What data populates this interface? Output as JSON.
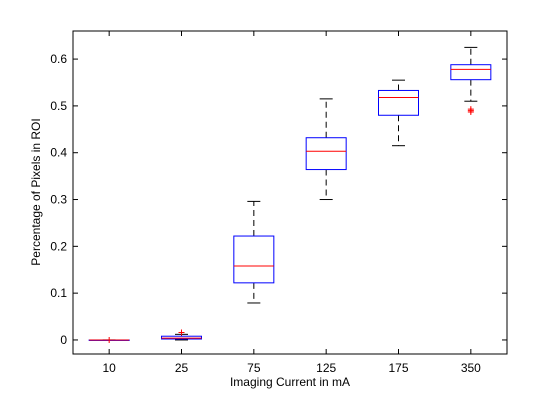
{
  "chart_data": {
    "type": "box",
    "xlabel": "Imaging Current in mA",
    "ylabel": "Percentage of Pixels in ROI",
    "categories": [
      "10",
      "25",
      "75",
      "125",
      "175",
      "350"
    ],
    "ylim": [
      -0.03,
      0.66
    ],
    "yticks": [
      0,
      0.1,
      0.2,
      0.3,
      0.4,
      0.5,
      0.6
    ],
    "ytick_labels": [
      "0",
      "0.1",
      "0.2",
      "0.3",
      "0.4",
      "0.5",
      "0.6"
    ],
    "grid": false,
    "boxes": [
      {
        "whisker_low": 0.0,
        "q1": 0.0,
        "median": 0.0,
        "q3": 0.0,
        "whisker_high": 0.0,
        "outliers": [
          0.0
        ]
      },
      {
        "whisker_low": 0.0,
        "q1": 0.002,
        "median": 0.004,
        "q3": 0.008,
        "whisker_high": 0.012,
        "outliers": [
          0.016
        ]
      },
      {
        "whisker_low": 0.079,
        "q1": 0.122,
        "median": 0.158,
        "q3": 0.222,
        "whisker_high": 0.296,
        "outliers": []
      },
      {
        "whisker_low": 0.3,
        "q1": 0.364,
        "median": 0.403,
        "q3": 0.432,
        "whisker_high": 0.515,
        "outliers": []
      },
      {
        "whisker_low": 0.415,
        "q1": 0.48,
        "median": 0.518,
        "q3": 0.533,
        "whisker_high": 0.555,
        "outliers": []
      },
      {
        "whisker_low": 0.51,
        "q1": 0.556,
        "median": 0.578,
        "q3": 0.588,
        "whisker_high": 0.625,
        "outliers": [
          0.493,
          0.49,
          0.487
        ]
      }
    ],
    "colors": {
      "box": "#0000ff",
      "median": "#ff0000",
      "whisker": "#000000",
      "outlier": "#ff0000"
    }
  }
}
